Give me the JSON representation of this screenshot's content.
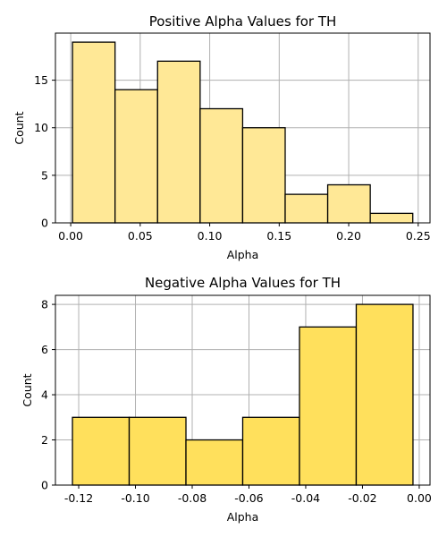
{
  "chart_data": [
    {
      "type": "bar",
      "title": "Positive Alpha Values for TH",
      "xlabel": "Alpha",
      "ylabel": "Count",
      "bin_edges": [
        0.0013,
        0.0319,
        0.0625,
        0.0931,
        0.1237,
        0.1543,
        0.1849,
        0.2155,
        0.2461
      ],
      "values": [
        19,
        14,
        17,
        12,
        10,
        3,
        4,
        1
      ],
      "xlim": [
        -0.011,
        0.2585
      ],
      "ylim": [
        0,
        19.95
      ],
      "xticks": [
        0.0,
        0.05,
        0.1,
        0.15,
        0.2,
        0.25
      ],
      "xtick_labels": [
        "0.00",
        "0.05",
        "0.10",
        "0.15",
        "0.20",
        "0.25"
      ],
      "yticks": [
        0,
        5,
        10,
        15
      ],
      "ytick_labels": [
        "0",
        "5",
        "10",
        "15"
      ],
      "color": "#ffe896",
      "grid": true
    },
    {
      "type": "bar",
      "title": "Negative Alpha Values for TH",
      "xlabel": "Alpha",
      "ylabel": "Count",
      "bin_edges": [
        -0.1222,
        -0.1022,
        -0.0822,
        -0.0622,
        -0.0422,
        -0.0222,
        -0.0022
      ],
      "values": [
        3,
        3,
        2,
        3,
        7,
        8
      ],
      "xlim": [
        -0.1282,
        0.0038
      ],
      "ylim": [
        0,
        8.4
      ],
      "xticks": [
        -0.12,
        -0.1,
        -0.08,
        -0.06,
        -0.04,
        -0.02,
        0.0
      ],
      "xtick_labels": [
        "-0.12",
        "-0.10",
        "-0.08",
        "-0.06",
        "-0.04",
        "-0.02",
        "0.00"
      ],
      "yticks": [
        0,
        2,
        4,
        6,
        8
      ],
      "ytick_labels": [
        "0",
        "2",
        "4",
        "6",
        "8"
      ],
      "color": "#ffe05c",
      "grid": true
    }
  ]
}
